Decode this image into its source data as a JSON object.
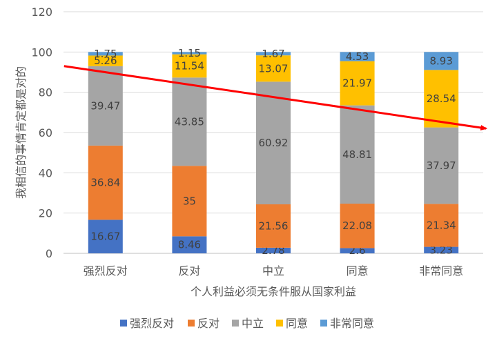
{
  "chart_data": {
    "type": "bar",
    "stacked": true,
    "categories": [
      "强烈反对",
      "反对",
      "中立",
      "同意",
      "非常同意"
    ],
    "series": [
      {
        "name": "强烈反对",
        "color": "#4472C4",
        "values": [
          16.67,
          8.46,
          2.78,
          2.6,
          3.23
        ]
      },
      {
        "name": "反对",
        "color": "#ED7D31",
        "values": [
          36.84,
          35,
          21.56,
          22.08,
          21.34
        ]
      },
      {
        "name": "中立",
        "color": "#A5A5A5",
        "values": [
          39.47,
          43.85,
          60.92,
          48.81,
          37.97
        ]
      },
      {
        "name": "同意",
        "color": "#FFC000",
        "values": [
          5.26,
          11.54,
          13.07,
          21.97,
          28.54
        ]
      },
      {
        "name": "非常同意",
        "color": "#5B9BD5",
        "values": [
          1.75,
          1.15,
          1.67,
          4.53,
          8.93
        ]
      }
    ],
    "xlabel": "个人利益必须无条件服从国家利益",
    "ylabel": "我相信的事情肯定都是对的",
    "ylim": [
      0,
      120
    ],
    "yticks": [
      0,
      20,
      40,
      60,
      80,
      100,
      120
    ],
    "grid": true,
    "legend": "bottom",
    "trend_arrow": {
      "color": "#FF0000",
      "start": {
        "category": "强烈反对",
        "y": 93
      },
      "end": {
        "category": "非常同意",
        "y": 62
      }
    }
  }
}
